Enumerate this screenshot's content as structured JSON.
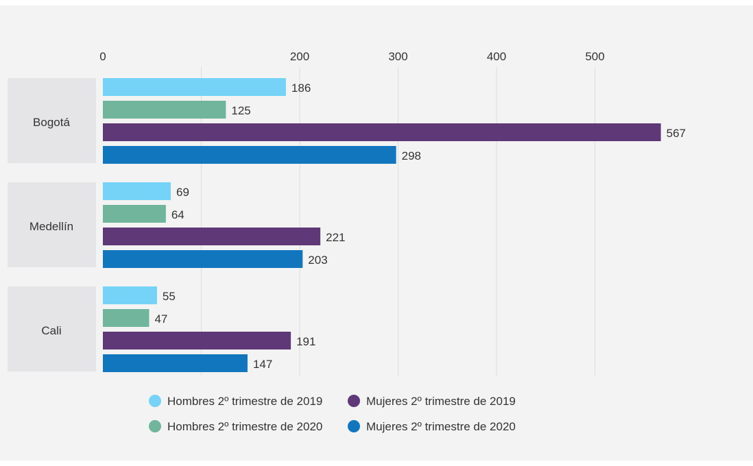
{
  "chart_data": {
    "type": "bar",
    "orientation": "horizontal",
    "categories": [
      "Bogotá",
      "Medellín",
      "Cali"
    ],
    "series": [
      {
        "name": "Hombres 2º trimestre de 2019",
        "color": "#74d3f6",
        "values": [
          186,
          69,
          55
        ]
      },
      {
        "name": "Hombres 2º trimestre de 2020",
        "color": "#70b59c",
        "values": [
          125,
          64,
          47
        ]
      },
      {
        "name": "Mujeres 2º trimestre de 2019",
        "color": "#5f3877",
        "values": [
          567,
          221,
          191
        ]
      },
      {
        "name": "Mujeres 2º trimestre de 2020",
        "color": "#1276be",
        "values": [
          298,
          203,
          147
        ]
      }
    ],
    "x_ticks": [
      "0",
      "200",
      "300",
      "400",
      "500"
    ],
    "xlim": [
      0,
      600
    ],
    "grid": true,
    "legend_position": "bottom"
  }
}
